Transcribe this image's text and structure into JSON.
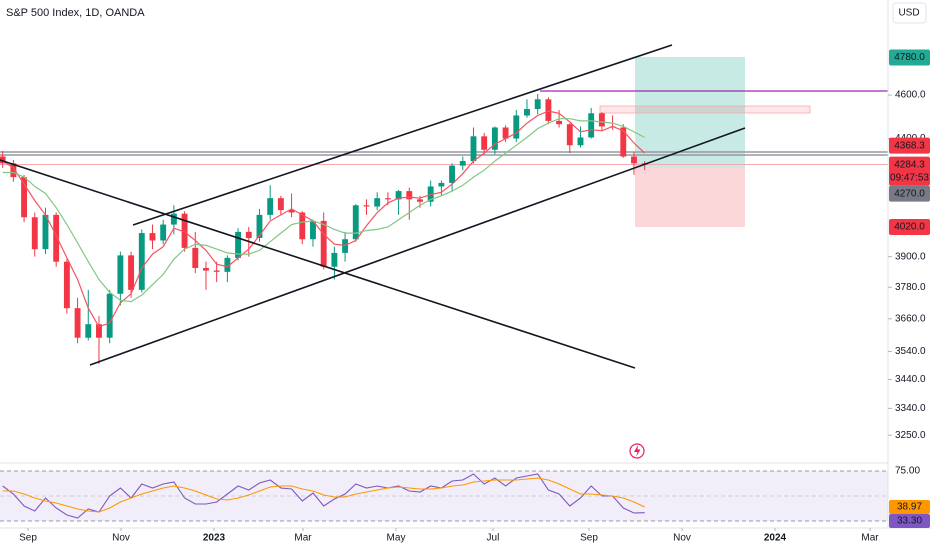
{
  "chart_data": {
    "type": "candlestick",
    "title": "S&P 500 Index, 1D, OANDA",
    "currency": "USD",
    "log": true,
    "up_color": "#089981",
    "down_color": "#f23645",
    "candles": [
      [
        4320,
        4345,
        4270,
        4290
      ],
      [
        4290,
        4305,
        4210,
        4230
      ],
      [
        4230,
        4240,
        4040,
        4060
      ],
      [
        4060,
        4080,
        3900,
        3930
      ],
      [
        3930,
        4100,
        3910,
        4070
      ],
      [
        4070,
        4080,
        3860,
        3880
      ],
      [
        3880,
        3890,
        3680,
        3700
      ],
      [
        3700,
        3740,
        3570,
        3590
      ],
      [
        3590,
        3770,
        3580,
        3640
      ],
      [
        3640,
        3670,
        3495,
        3590
      ],
      [
        3590,
        3770,
        3570,
        3755
      ],
      [
        3755,
        3920,
        3710,
        3905
      ],
      [
        3905,
        3920,
        3740,
        3770
      ],
      [
        3770,
        4010,
        3760,
        3995
      ],
      [
        3995,
        4030,
        3930,
        3965
      ],
      [
        3965,
        4050,
        3950,
        4030
      ],
      [
        4030,
        4110,
        3990,
        4075
      ],
      [
        4075,
        4085,
        3920,
        3935
      ],
      [
        3935,
        4000,
        3835,
        3855
      ],
      [
        3855,
        3880,
        3770,
        3845
      ],
      [
        3845,
        3880,
        3800,
        3840
      ],
      [
        3840,
        3905,
        3800,
        3895
      ],
      [
        3895,
        4015,
        3885,
        4000
      ],
      [
        4000,
        4020,
        3900,
        3975
      ],
      [
        3975,
        4095,
        3960,
        4070
      ],
      [
        4070,
        4195,
        4050,
        4140
      ],
      [
        4140,
        4150,
        4070,
        4090
      ],
      [
        4090,
        4160,
        4060,
        4080
      ],
      [
        4080,
        4085,
        3950,
        3970
      ],
      [
        3970,
        4050,
        3940,
        4045
      ],
      [
        4045,
        4080,
        3850,
        3860
      ],
      [
        3860,
        3940,
        3810,
        3915
      ],
      [
        3915,
        4000,
        3880,
        3970
      ],
      [
        3970,
        4115,
        3960,
        4110
      ],
      [
        4110,
        4135,
        4070,
        4105
      ],
      [
        4105,
        4165,
        4090,
        4140
      ],
      [
        4140,
        4165,
        4110,
        4135
      ],
      [
        4135,
        4175,
        4070,
        4170
      ],
      [
        4170,
        4185,
        4050,
        4135
      ],
      [
        4135,
        4150,
        4100,
        4125
      ],
      [
        4125,
        4215,
        4105,
        4190
      ],
      [
        4190,
        4215,
        4150,
        4205
      ],
      [
        4205,
        4290,
        4170,
        4280
      ],
      [
        4280,
        4320,
        4260,
        4300
      ],
      [
        4300,
        4450,
        4290,
        4410
      ],
      [
        4410,
        4425,
        4330,
        4350
      ],
      [
        4350,
        4455,
        4330,
        4450
      ],
      [
        4450,
        4460,
        4385,
        4400
      ],
      [
        4400,
        4530,
        4385,
        4505
      ],
      [
        4505,
        4580,
        4495,
        4535
      ],
      [
        4535,
        4605,
        4510,
        4580
      ],
      [
        4580,
        4590,
        4465,
        4480
      ],
      [
        4480,
        4530,
        4450,
        4465
      ],
      [
        4465,
        4470,
        4335,
        4370
      ],
      [
        4370,
        4455,
        4360,
        4405
      ],
      [
        4405,
        4540,
        4400,
        4515
      ],
      [
        4515,
        4520,
        4435,
        4455
      ],
      [
        4455,
        4505,
        4440,
        4450
      ],
      [
        4450,
        4465,
        4315,
        4320
      ],
      [
        4320,
        4340,
        4240,
        4290
      ],
      [
        4290,
        4300,
        4260,
        4284.3
      ]
    ],
    "ma": [
      {
        "color": "#f7525f",
        "values": [
          4300,
          4270,
          4200,
          4130,
          4070,
          3985,
          3895,
          3810,
          3700,
          3630,
          3645,
          3720,
          3755,
          3855,
          3910,
          3940,
          4015,
          4000,
          3965,
          3925,
          3870,
          3860,
          3895,
          3930,
          3985,
          4045,
          4070,
          4095,
          4070,
          4045,
          3990,
          3950,
          3945,
          3965,
          4025,
          4080,
          4120,
          4140,
          4145,
          4140,
          4155,
          4165,
          4200,
          4245,
          4300,
          4335,
          4375,
          4400,
          4425,
          4470,
          4505,
          4525,
          4515,
          4475,
          4430,
          4440,
          4435,
          4455,
          4435,
          4380,
          4335
        ]
      },
      {
        "color": "#81c784",
        "values": [
          4250,
          4250,
          4230,
          4190,
          4160,
          4100,
          4030,
          3955,
          3880,
          3810,
          3760,
          3730,
          3725,
          3750,
          3790,
          3830,
          3890,
          3930,
          3950,
          3945,
          3930,
          3915,
          3910,
          3910,
          3925,
          3960,
          3995,
          4030,
          4040,
          4045,
          4030,
          4010,
          3995,
          3995,
          4005,
          4010,
          4020,
          4050,
          4080,
          4110,
          4135,
          4150,
          4170,
          4195,
          4230,
          4260,
          4300,
          4335,
          4370,
          4405,
          4445,
          4470,
          4490,
          4490,
          4480,
          4480,
          4475,
          4470,
          4455,
          4430,
          4405
        ]
      }
    ],
    "xlim": [
      -0.25,
      82.74
    ],
    "xticks": [
      {
        "value": 2.37,
        "label": "Sep"
      },
      {
        "value": 11.06,
        "label": "Nov"
      },
      {
        "value": 19.75,
        "label": "2023"
      },
      {
        "value": 28.07,
        "label": "Mar"
      },
      {
        "value": 36.76,
        "label": "May"
      },
      {
        "value": 45.82,
        "label": "Jul"
      },
      {
        "value": 54.8,
        "label": "Sep"
      },
      {
        "value": 63.49,
        "label": "Nov"
      },
      {
        "value": 72.18,
        "label": "2024"
      },
      {
        "value": 81.06,
        "label": "Mar"
      }
    ],
    "ylim": [
      3162,
      5069
    ],
    "yticks": [
      {
        "value": 4600,
        "label": "4600.0"
      },
      {
        "value": 4400,
        "label": "4400.0"
      },
      {
        "value": 3900,
        "label": "3900.0"
      },
      {
        "value": 3780,
        "label": "3780.0"
      },
      {
        "value": 3660,
        "label": "3660.0"
      },
      {
        "value": 3540,
        "label": "3540.0"
      },
      {
        "value": 3440,
        "label": "3440.0"
      },
      {
        "value": 3340,
        "label": "3340.0"
      },
      {
        "value": 3250,
        "label": "3250.0"
      }
    ],
    "price_tags": [
      {
        "value": 4780,
        "label": "4780.0",
        "color": "#22ab94"
      },
      {
        "value": 4368.3,
        "label": "4368.3",
        "color": "#f23645"
      },
      {
        "value": 4284.3,
        "label": "4284.3",
        "color": "#f23645",
        "countdown": "09:47:53"
      },
      {
        "value": 4270,
        "label": "4270.0",
        "color": "#787b86"
      },
      {
        "value": 4020,
        "label": "4020.0",
        "color": "#f23645"
      }
    ],
    "rsi": {
      "ylim": [
        19,
        80
      ],
      "yticks": [
        {
          "value": 75,
          "label": "75.00"
        },
        {
          "value": 25,
          "label": "25.00"
        }
      ],
      "midline": 50,
      "series": [
        {
          "color": "#7e57c2",
          "values": [
            60,
            52,
            40,
            35,
            48,
            38,
            31,
            28,
            37,
            34,
            50,
            58,
            48,
            62,
            58,
            62,
            64,
            48,
            42,
            42,
            44,
            52,
            60,
            56,
            63,
            66,
            58,
            57,
            45,
            53,
            40,
            47,
            52,
            62,
            58,
            60,
            58,
            60,
            55,
            54,
            60,
            58,
            65,
            66,
            72,
            62,
            68,
            60,
            68,
            70,
            72,
            56,
            52,
            40,
            48,
            60,
            50,
            50,
            38,
            33,
            33.3
          ]
        },
        {
          "color": "#ff9800",
          "values": [
            55,
            55,
            52,
            48,
            45,
            43,
            40,
            37,
            35,
            34,
            38,
            44,
            48,
            52,
            55,
            58,
            60,
            58,
            55,
            51,
            47,
            46,
            48,
            51,
            55,
            59,
            60,
            60,
            57,
            55,
            51,
            49,
            49,
            52,
            54,
            56,
            58,
            59,
            58,
            57,
            57,
            58,
            60,
            61,
            64,
            65,
            66,
            66,
            66,
            67,
            68,
            66,
            62,
            57,
            52,
            52,
            51,
            50,
            48,
            44,
            38.97
          ]
        }
      ],
      "tags": [
        {
          "value": 38.97,
          "label": "38.97",
          "color": "#ff9800"
        },
        {
          "value": 33.3,
          "label": "33.30",
          "color": "#7e57c2"
        }
      ]
    }
  }
}
